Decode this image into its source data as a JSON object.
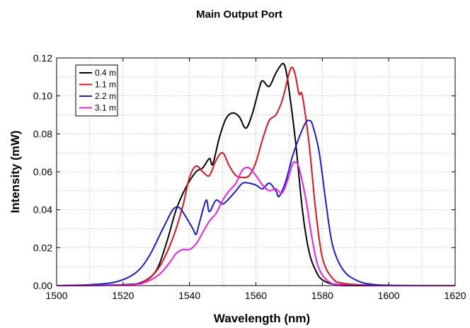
{
  "chart_data": {
    "type": "line",
    "title": "Main Output Port",
    "xlabel": "Wavelength (nm)",
    "ylabel": "Intensity (mW)",
    "xlim": [
      1500,
      1620
    ],
    "ylim": [
      0,
      0.12
    ],
    "xticks": [
      1500,
      1520,
      1540,
      1560,
      1580,
      1600,
      1620
    ],
    "yticks": [
      0.0,
      0.02,
      0.04,
      0.06,
      0.08,
      0.1,
      0.12
    ],
    "ytick_labels": [
      "0.00",
      "0.02",
      "0.04",
      "0.06",
      "0.08",
      "0.10",
      "0.12"
    ],
    "grid": "dotted",
    "legend_position": "top-left",
    "series": [
      {
        "name": "0.4 m",
        "color": "#000000",
        "points": [
          [
            1500,
            0
          ],
          [
            1520,
            0.0005
          ],
          [
            1526,
            0.002
          ],
          [
            1530,
            0.008
          ],
          [
            1533,
            0.022
          ],
          [
            1536,
            0.04
          ],
          [
            1539,
            0.052
          ],
          [
            1542,
            0.06
          ],
          [
            1544,
            0.062
          ],
          [
            1546,
            0.067
          ],
          [
            1547,
            0.064
          ],
          [
            1549,
            0.078
          ],
          [
            1551,
            0.088
          ],
          [
            1553,
            0.091
          ],
          [
            1555,
            0.089
          ],
          [
            1557,
            0.083
          ],
          [
            1559,
            0.091
          ],
          [
            1561,
            0.104
          ],
          [
            1562,
            0.108
          ],
          [
            1564,
            0.105
          ],
          [
            1566,
            0.112
          ],
          [
            1568,
            0.117
          ],
          [
            1569,
            0.114
          ],
          [
            1570,
            0.103
          ],
          [
            1572,
            0.075
          ],
          [
            1574,
            0.04
          ],
          [
            1576,
            0.018
          ],
          [
            1578,
            0.008
          ],
          [
            1580,
            0.003
          ],
          [
            1584,
            0.0005
          ],
          [
            1590,
            0
          ],
          [
            1620,
            0
          ]
        ]
      },
      {
        "name": "1.1 m",
        "color": "#e8101e",
        "points": [
          [
            1500,
            0
          ],
          [
            1522,
            0.0005
          ],
          [
            1527,
            0.003
          ],
          [
            1531,
            0.01
          ],
          [
            1535,
            0.025
          ],
          [
            1538,
            0.042
          ],
          [
            1540,
            0.057
          ],
          [
            1542,
            0.063
          ],
          [
            1544,
            0.06
          ],
          [
            1546,
            0.058
          ],
          [
            1548,
            0.066
          ],
          [
            1550,
            0.07
          ],
          [
            1552,
            0.063
          ],
          [
            1554,
            0.058
          ],
          [
            1556,
            0.057
          ],
          [
            1558,
            0.058
          ],
          [
            1560,
            0.065
          ],
          [
            1562,
            0.077
          ],
          [
            1564,
            0.087
          ],
          [
            1566,
            0.09
          ],
          [
            1568,
            0.098
          ],
          [
            1570,
            0.112
          ],
          [
            1571,
            0.115
          ],
          [
            1572,
            0.11
          ],
          [
            1573,
            0.101
          ],
          [
            1574,
            0.1
          ],
          [
            1576,
            0.075
          ],
          [
            1578,
            0.04
          ],
          [
            1580,
            0.015
          ],
          [
            1583,
            0.004
          ],
          [
            1587,
            0.001
          ],
          [
            1600,
            0
          ],
          [
            1620,
            0
          ]
        ]
      },
      {
        "name": "2.2 m",
        "color": "#1a1adc",
        "points": [
          [
            1500,
            0
          ],
          [
            1510,
            0.0005
          ],
          [
            1518,
            0.002
          ],
          [
            1524,
            0.007
          ],
          [
            1528,
            0.016
          ],
          [
            1532,
            0.03
          ],
          [
            1535,
            0.04
          ],
          [
            1537,
            0.041
          ],
          [
            1539,
            0.036
          ],
          [
            1541,
            0.03
          ],
          [
            1542,
            0.027
          ],
          [
            1543,
            0.033
          ],
          [
            1545,
            0.045
          ],
          [
            1546,
            0.039
          ],
          [
            1548,
            0.045
          ],
          [
            1550,
            0.043
          ],
          [
            1552,
            0.046
          ],
          [
            1554,
            0.05
          ],
          [
            1556,
            0.054
          ],
          [
            1558,
            0.054
          ],
          [
            1560,
            0.053
          ],
          [
            1562,
            0.051
          ],
          [
            1564,
            0.054
          ],
          [
            1566,
            0.05
          ],
          [
            1567,
            0.047
          ],
          [
            1569,
            0.055
          ],
          [
            1571,
            0.068
          ],
          [
            1573,
            0.078
          ],
          [
            1575,
            0.086
          ],
          [
            1576,
            0.087
          ],
          [
            1577,
            0.085
          ],
          [
            1579,
            0.071
          ],
          [
            1581,
            0.045
          ],
          [
            1583,
            0.022
          ],
          [
            1586,
            0.009
          ],
          [
            1590,
            0.003
          ],
          [
            1596,
            0.0005
          ],
          [
            1610,
            0
          ],
          [
            1620,
            0
          ]
        ]
      },
      {
        "name": "3.1 m",
        "color": "#f01cf0",
        "points": [
          [
            1500,
            0
          ],
          [
            1522,
            0.0005
          ],
          [
            1527,
            0.002
          ],
          [
            1531,
            0.006
          ],
          [
            1534,
            0.012
          ],
          [
            1536,
            0.017
          ],
          [
            1538,
            0.019
          ],
          [
            1540,
            0.019
          ],
          [
            1542,
            0.022
          ],
          [
            1544,
            0.028
          ],
          [
            1546,
            0.034
          ],
          [
            1548,
            0.038
          ],
          [
            1550,
            0.045
          ],
          [
            1552,
            0.05
          ],
          [
            1554,
            0.054
          ],
          [
            1556,
            0.061
          ],
          [
            1558,
            0.062
          ],
          [
            1560,
            0.058
          ],
          [
            1562,
            0.053
          ],
          [
            1564,
            0.05
          ],
          [
            1566,
            0.051
          ],
          [
            1568,
            0.049
          ],
          [
            1570,
            0.058
          ],
          [
            1571,
            0.064
          ],
          [
            1572,
            0.065
          ],
          [
            1573,
            0.062
          ],
          [
            1575,
            0.046
          ],
          [
            1577,
            0.024
          ],
          [
            1579,
            0.009
          ],
          [
            1582,
            0.002
          ],
          [
            1586,
            0.0005
          ],
          [
            1600,
            0
          ],
          [
            1620,
            0
          ]
        ]
      }
    ]
  }
}
